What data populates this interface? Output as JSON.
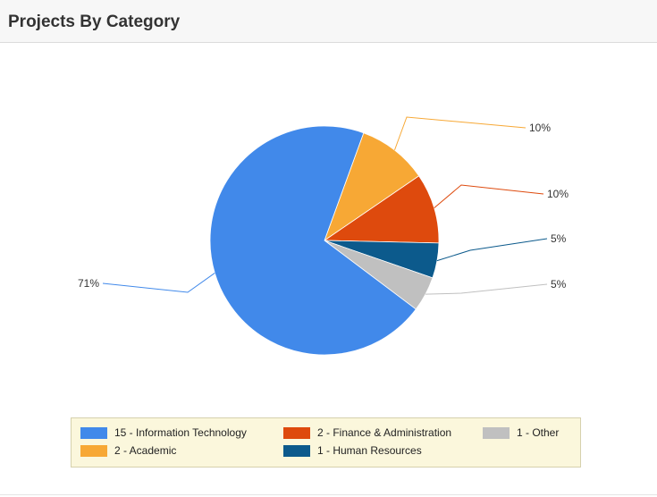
{
  "panel": {
    "title": "Projects By Category"
  },
  "chart_data": {
    "type": "pie",
    "title": "",
    "start_angle_deg": 20,
    "slices": [
      {
        "category": "Academic",
        "count": 2,
        "value": 10,
        "label": "10%",
        "legend": "2 - Academic",
        "color": "#f7a835"
      },
      {
        "category": "Finance & Administration",
        "count": 2,
        "value": 10,
        "label": "10%",
        "legend": "2 - Finance & Administration",
        "color": "#de4a0d"
      },
      {
        "category": "Human Resources",
        "count": 1,
        "value": 5,
        "label": "5%",
        "legend": "1 - Human Resources",
        "color": "#0c5a8c"
      },
      {
        "category": "Other",
        "count": 1,
        "value": 5,
        "label": "5%",
        "legend": "1 - Other",
        "color": "#c0c0c0"
      },
      {
        "category": "Information Technology",
        "count": 15,
        "value": 71,
        "label": "71%",
        "legend": "15 - Information Technology",
        "color": "#4189ea"
      }
    ],
    "legend_order": [
      "Information Technology",
      "Finance & Administration",
      "Other",
      "Academic",
      "Human Resources"
    ],
    "legend_position": "bottom"
  }
}
